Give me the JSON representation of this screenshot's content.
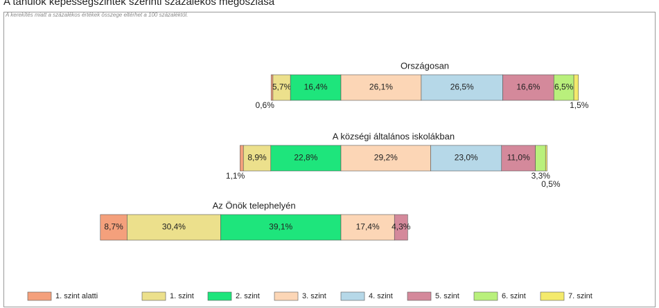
{
  "chart_data": {
    "type": "bar",
    "title": "A tanulók képességszintek szerinti százalékos megoszlása",
    "subtitle": "A kerekítés miatt a százalékos értékek összege eltérhet a 100 százaléktól.",
    "categories": [
      "Országosan",
      "A községi általános iskolákban",
      "Az Önök telephelyén"
    ],
    "series": [
      {
        "name": "1. szint alatti",
        "color": "#f4a07c",
        "values": [
          0.6,
          1.1,
          8.7
        ],
        "value_labels": [
          "0,6%",
          "1,1%",
          "8,7%"
        ]
      },
      {
        "name": "1. szint",
        "color": "#ece08c",
        "values": [
          5.7,
          8.9,
          30.4
        ],
        "value_labels": [
          "5,7%",
          "8,9%",
          "30,4%"
        ]
      },
      {
        "name": "2. szint",
        "color": "#1ee57c",
        "values": [
          16.4,
          22.8,
          39.1
        ],
        "value_labels": [
          "16,4%",
          "22,8%",
          "39,1%"
        ]
      },
      {
        "name": "3. szint",
        "color": "#fcd6b6",
        "values": [
          26.1,
          29.2,
          17.4
        ],
        "value_labels": [
          "26,1%",
          "29,2%",
          "17,4%"
        ]
      },
      {
        "name": "4. szint",
        "color": "#b6d8e8",
        "values": [
          26.5,
          23.0,
          null
        ],
        "value_labels": [
          "26,5%",
          "23,0%",
          null
        ]
      },
      {
        "name": "5. szint",
        "color": "#d4899b",
        "values": [
          16.6,
          11.0,
          4.3
        ],
        "value_labels": [
          "16,6%",
          "11,0%",
          "4,3%"
        ]
      },
      {
        "name": "6. szint",
        "color": "#b9f07c",
        "values": [
          6.5,
          3.3,
          null
        ],
        "value_labels": [
          "6,5%",
          "3,3%",
          null
        ]
      },
      {
        "name": "7. szint",
        "color": "#f4ea6c",
        "values": [
          1.5,
          0.5,
          null
        ],
        "value_labels": [
          "1,5%",
          "0,5%",
          null
        ]
      }
    ]
  }
}
